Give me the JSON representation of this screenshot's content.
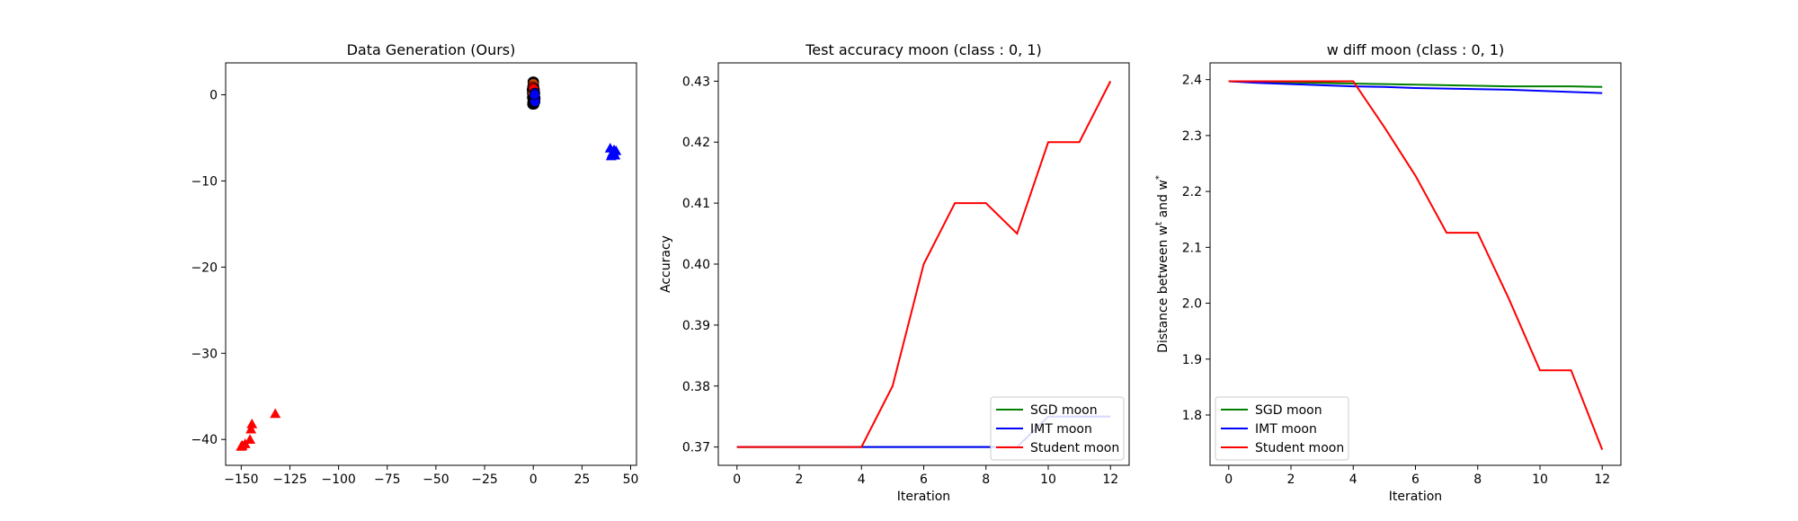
{
  "chart_data": [
    {
      "type": "scatter",
      "title": "Data Generation (Ours)",
      "xlabel": "",
      "ylabel": "",
      "xlim": [
        -158,
        53
      ],
      "ylim": [
        -43,
        3.7
      ],
      "xticks": [
        -150,
        -125,
        -100,
        -75,
        -50,
        -25,
        0,
        25,
        50
      ],
      "xtick_labels": [
        "−150",
        "−125",
        "−100",
        "−75",
        "−50",
        "−25",
        "0",
        "25",
        "50"
      ],
      "yticks": [
        0,
        -10,
        -20,
        -30,
        -40
      ],
      "ytick_labels": [
        "0",
        "−10",
        "−20",
        "−30",
        "−40"
      ],
      "series": [
        {
          "color": "#000000",
          "marker": "circle",
          "points": [
            [
              0,
              0
            ],
            [
              0,
              0.4
            ],
            [
              0,
              0.8
            ],
            [
              0,
              1.2
            ],
            [
              -0.5,
              0.2
            ],
            [
              0.5,
              0.2
            ],
            [
              -0.5,
              -0.3
            ],
            [
              0.5,
              -0.3
            ],
            [
              0,
              -0.6
            ],
            [
              -0.3,
              1.0
            ],
            [
              0.3,
              1.0
            ],
            [
              0.3,
              -0.8
            ],
            [
              -0.3,
              -0.8
            ],
            [
              0.6,
              0.6
            ],
            [
              -0.6,
              0.6
            ],
            [
              0,
              -1.0
            ],
            [
              0.4,
              -1.1
            ],
            [
              -0.4,
              -1.1
            ],
            [
              0.2,
              1.5
            ],
            [
              -0.2,
              1.5
            ]
          ]
        },
        {
          "color": "#cc4400",
          "marker": "circle",
          "points": [
            [
              0,
              0.6
            ],
            [
              -0.4,
              0.8
            ],
            [
              0.4,
              0.3
            ],
            [
              0,
              1.3
            ],
            [
              -0.2,
              0.2
            ]
          ]
        },
        {
          "color": "#ff0000",
          "marker": "circle",
          "points": [
            [
              -0.2,
              0.9
            ],
            [
              0.2,
              0.7
            ]
          ]
        },
        {
          "color": "#0000ff",
          "marker": "circle",
          "points": [
            [
              0.8,
              0.2
            ],
            [
              0.6,
              -0.2
            ],
            [
              1.0,
              -0.4
            ],
            [
              0.9,
              -0.8
            ],
            [
              0.7,
              0.0
            ]
          ]
        },
        {
          "color": "#0000ff",
          "marker": "triangle",
          "points": [
            [
              39.5,
              -6.2
            ],
            [
              40.5,
              -6.8
            ],
            [
              41.5,
              -6.4
            ],
            [
              42,
              -7.0
            ],
            [
              40,
              -7.1
            ],
            [
              41,
              -6.6
            ],
            [
              42.5,
              -6.5
            ]
          ]
        },
        {
          "color": "#ff0000",
          "marker": "triangle",
          "points": [
            [
              -132.5,
              -37.0
            ],
            [
              -144.5,
              -38.2
            ],
            [
              -145,
              -38.8
            ],
            [
              -145.5,
              -40.0
            ],
            [
              -148,
              -40.5
            ],
            [
              -149.5,
              -40.7
            ],
            [
              -150,
              -40.8
            ]
          ]
        }
      ]
    },
    {
      "type": "line",
      "title": "Test accuracy moon (class : 0, 1)",
      "xlabel": "Iteration",
      "ylabel": "Accuracy",
      "xlim": [
        -0.6,
        12.6
      ],
      "ylim": [
        0.367,
        0.433
      ],
      "xticks": [
        0,
        2,
        4,
        6,
        8,
        10,
        12
      ],
      "xtick_labels": [
        "0",
        "2",
        "4",
        "6",
        "8",
        "10",
        "12"
      ],
      "yticks": [
        0.37,
        0.38,
        0.39,
        0.4,
        0.41,
        0.42,
        0.43
      ],
      "ytick_labels": [
        "0.37",
        "0.38",
        "0.39",
        "0.40",
        "0.41",
        "0.42",
        "0.43"
      ],
      "legend": "lower-right",
      "x": [
        0,
        1,
        2,
        3,
        4,
        5,
        6,
        7,
        8,
        9,
        10,
        11,
        12
      ],
      "series": [
        {
          "name": "SGD moon",
          "color": "#008000",
          "values": [
            0.37,
            0.37,
            0.37,
            0.37,
            0.37,
            0.37,
            0.37,
            0.37,
            0.37,
            0.37,
            0.375,
            0.375,
            0.375
          ]
        },
        {
          "name": "IMT moon",
          "color": "#0000ff",
          "values": [
            0.37,
            0.37,
            0.37,
            0.37,
            0.37,
            0.37,
            0.37,
            0.37,
            0.37,
            0.37,
            0.375,
            0.375,
            0.375
          ]
        },
        {
          "name": "Student moon",
          "color": "#ff0000",
          "values": [
            0.37,
            0.37,
            0.37,
            0.37,
            0.37,
            0.38,
            0.4,
            0.41,
            0.41,
            0.405,
            0.42,
            0.42,
            0.43
          ]
        }
      ]
    },
    {
      "type": "line",
      "title": "w diff moon (class : 0, 1)",
      "xlabel": "Iteration",
      "ylabel": "Distance between w",
      "ylabel_sup1": "t",
      "ylabel_mid": " and w",
      "ylabel_sup2": "*",
      "xlim": [
        -0.6,
        12.6
      ],
      "ylim": [
        1.71,
        2.43
      ],
      "xticks": [
        0,
        2,
        4,
        6,
        8,
        10,
        12
      ],
      "xtick_labels": [
        "0",
        "2",
        "4",
        "6",
        "8",
        "10",
        "12"
      ],
      "yticks": [
        1.8,
        1.9,
        2.0,
        2.1,
        2.2,
        2.3,
        2.4
      ],
      "ytick_labels": [
        "1.8",
        "1.9",
        "2.0",
        "2.1",
        "2.2",
        "2.3",
        "2.4"
      ],
      "legend": "lower-left",
      "x": [
        0,
        1,
        2,
        3,
        4,
        5,
        6,
        7,
        8,
        9,
        10,
        11,
        12
      ],
      "series": [
        {
          "name": "SGD moon",
          "color": "#008000",
          "values": [
            2.397,
            2.396,
            2.395,
            2.394,
            2.393,
            2.392,
            2.391,
            2.39,
            2.389,
            2.388,
            2.388,
            2.388,
            2.387
          ]
        },
        {
          "name": "IMT moon",
          "color": "#0000ff",
          "values": [
            2.397,
            2.394,
            2.392,
            2.39,
            2.388,
            2.387,
            2.385,
            2.384,
            2.383,
            2.382,
            2.38,
            2.378,
            2.376
          ]
        },
        {
          "name": "Student moon",
          "color": "#ff0000",
          "values": [
            2.397,
            2.397,
            2.397,
            2.397,
            2.397,
            2.315,
            2.228,
            2.126,
            2.126,
            2.008,
            1.88,
            1.88,
            1.738
          ]
        }
      ]
    }
  ]
}
